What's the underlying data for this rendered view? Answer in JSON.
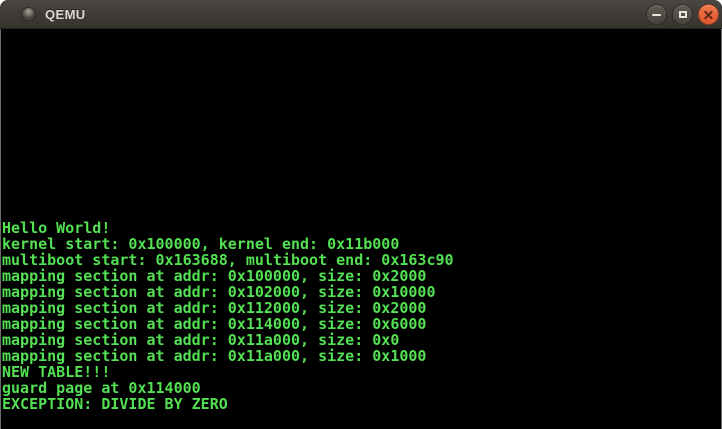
{
  "window": {
    "title": "QEMU",
    "icons": [
      "window-orb-icon",
      "minimize-icon",
      "maximize-icon",
      "close-icon"
    ]
  },
  "colors": {
    "titlebar_bg": "#3e3a35",
    "titlebar_text": "#dedad2",
    "close_button": "#e8633a",
    "gray_button": "#504d46",
    "terminal_bg": "#000000",
    "terminal_text": "#53e053"
  },
  "terminal": {
    "lines": [
      "Hello World!",
      "kernel start: 0x100000, kernel end: 0x11b000",
      "multiboot start: 0x163688, multiboot end: 0x163c90",
      "mapping section at addr: 0x100000, size: 0x2000",
      "mapping section at addr: 0x102000, size: 0x10000",
      "mapping section at addr: 0x112000, size: 0x2000",
      "mapping section at addr: 0x114000, size: 0x6000",
      "mapping section at addr: 0x11a000, size: 0x0",
      "mapping section at addr: 0x11a000, size: 0x1000",
      "NEW TABLE!!!",
      "guard page at 0x114000",
      "EXCEPTION: DIVIDE BY ZERO"
    ]
  }
}
